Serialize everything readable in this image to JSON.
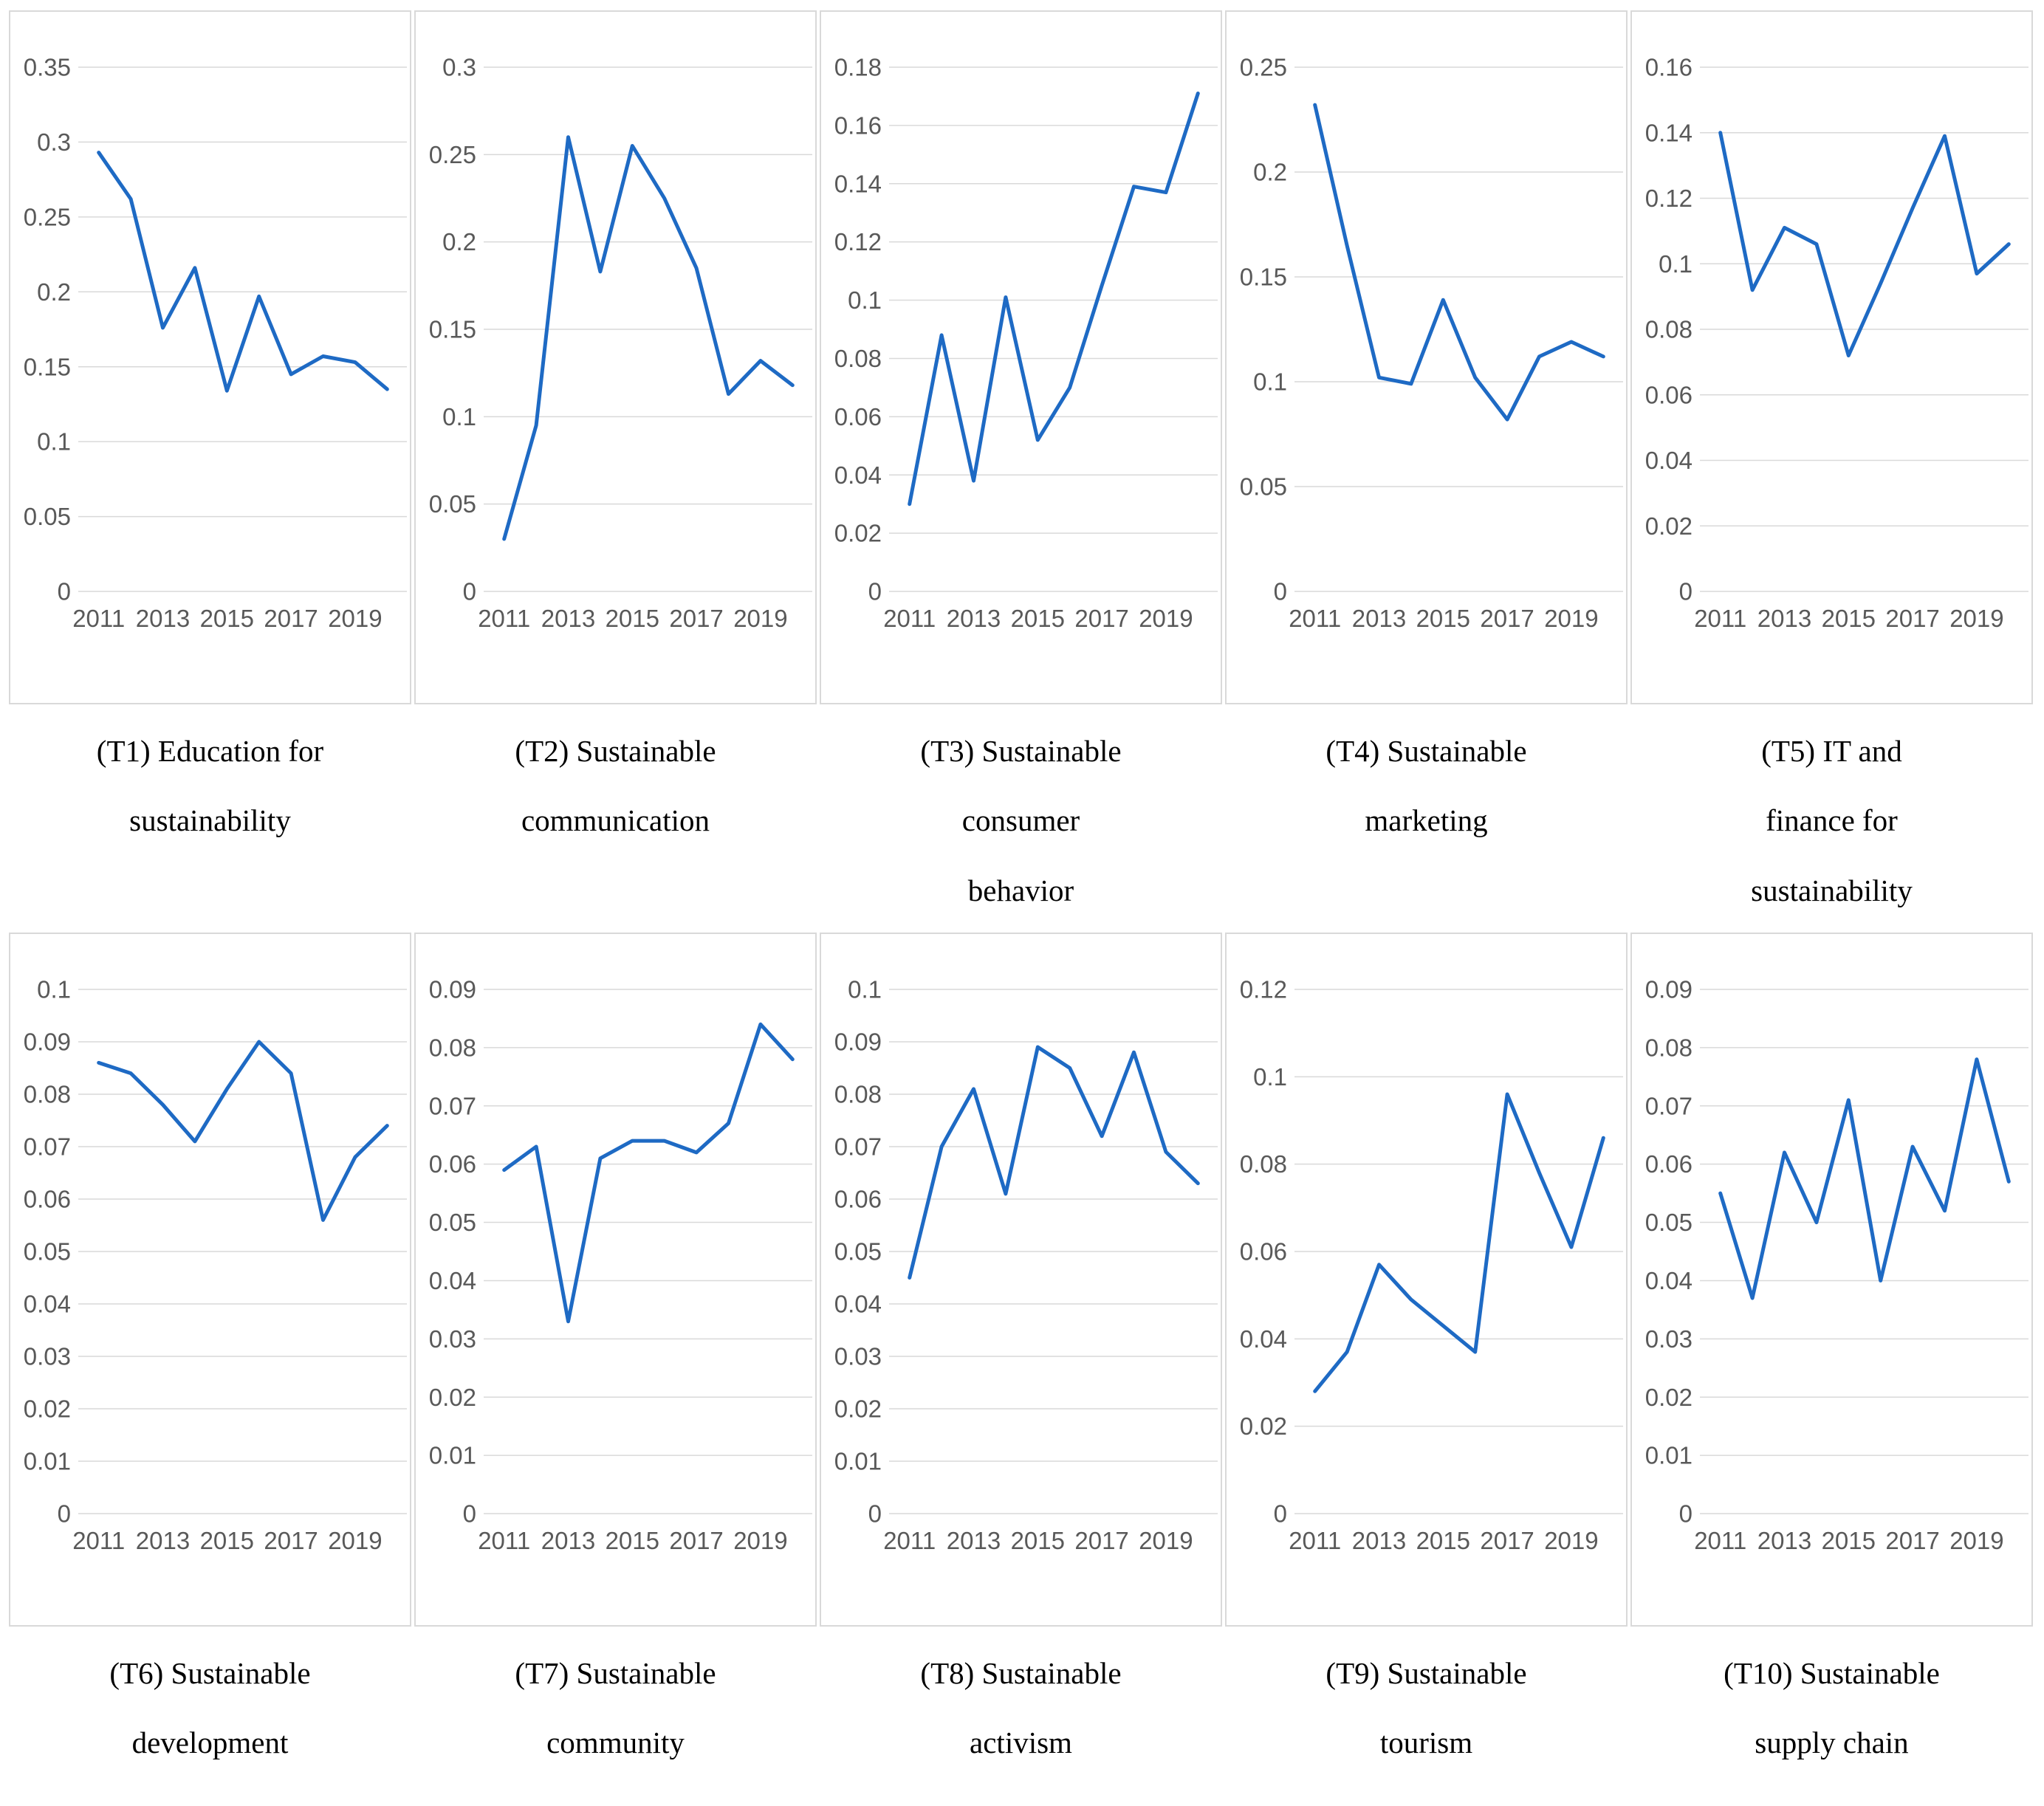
{
  "figure": {
    "description_colors": {
      "line_color": "#1E6AC4",
      "grid_color": "#D9D9D9",
      "tick_label_color": "#595959",
      "border_color": "#D9D9D9",
      "background": "#FFFFFF"
    }
  },
  "chart_data": [
    {
      "id": "T1",
      "type": "line",
      "title": "(T1) Education for sustainability",
      "caption_lines": [
        "(T1) Education for",
        "sustainability"
      ],
      "x": [
        2011,
        2012,
        2013,
        2014,
        2015,
        2016,
        2017,
        2018,
        2019,
        2020
      ],
      "x_tick_labels": [
        "2011",
        "2013",
        "2015",
        "2017",
        "2019"
      ],
      "values": [
        0.293,
        0.262,
        0.176,
        0.216,
        0.134,
        0.197,
        0.145,
        0.157,
        0.153,
        0.135
      ],
      "ylim": [
        0,
        0.35
      ],
      "y_ticks": [
        "0.35",
        "0.3",
        "0.25",
        "0.2",
        "0.15",
        "0.1",
        "0.05",
        "0"
      ],
      "grid": true,
      "legend": "none"
    },
    {
      "id": "T2",
      "type": "line",
      "title": "(T2) Sustainable communication",
      "caption_lines": [
        "(T2) Sustainable",
        "communication"
      ],
      "x": [
        2011,
        2012,
        2013,
        2014,
        2015,
        2016,
        2017,
        2018,
        2019,
        2020
      ],
      "x_tick_labels": [
        "2011",
        "2013",
        "2015",
        "2017",
        "2019"
      ],
      "values": [
        0.03,
        0.095,
        0.26,
        0.183,
        0.255,
        0.225,
        0.185,
        0.113,
        0.132,
        0.118
      ],
      "ylim": [
        0,
        0.3
      ],
      "y_ticks": [
        "0.3",
        "0.25",
        "0.2",
        "0.15",
        "0.1",
        "0.05",
        "0"
      ],
      "grid": true,
      "legend": "none"
    },
    {
      "id": "T3",
      "type": "line",
      "title": "(T3) Sustainable consumer behavior",
      "caption_lines": [
        "(T3) Sustainable",
        "consumer",
        "behavior"
      ],
      "x": [
        2011,
        2012,
        2013,
        2014,
        2015,
        2016,
        2017,
        2018,
        2019,
        2020
      ],
      "x_tick_labels": [
        "2011",
        "2013",
        "2015",
        "2017",
        "2019"
      ],
      "values": [
        0.03,
        0.088,
        0.038,
        0.101,
        0.052,
        0.07,
        0.105,
        0.139,
        0.137,
        0.171
      ],
      "ylim": [
        0,
        0.18
      ],
      "y_ticks": [
        "0.18",
        "0.16",
        "0.14",
        "0.12",
        "0.1",
        "0.08",
        "0.06",
        "0.04",
        "0.02",
        "0"
      ],
      "grid": true,
      "legend": "none"
    },
    {
      "id": "T4",
      "type": "line",
      "title": "(T4) Sustainable marketing",
      "caption_lines": [
        "(T4) Sustainable",
        "marketing"
      ],
      "x": [
        2011,
        2012,
        2013,
        2014,
        2015,
        2016,
        2017,
        2018,
        2019,
        2020
      ],
      "x_tick_labels": [
        "2011",
        "2013",
        "2015",
        "2017",
        "2019"
      ],
      "values": [
        0.232,
        0.165,
        0.102,
        0.099,
        0.139,
        0.102,
        0.082,
        0.112,
        0.119,
        0.112
      ],
      "ylim": [
        0,
        0.25
      ],
      "y_ticks": [
        "0.25",
        "0.2",
        "0.15",
        "0.1",
        "0.05",
        "0"
      ],
      "grid": true,
      "legend": "none"
    },
    {
      "id": "T5",
      "type": "line",
      "title": "(T5) IT and finance for sustainability",
      "caption_lines": [
        "(T5) IT and",
        "finance for",
        "sustainability"
      ],
      "x": [
        2011,
        2012,
        2013,
        2014,
        2015,
        2016,
        2017,
        2018,
        2019,
        2020
      ],
      "x_tick_labels": [
        "2011",
        "2013",
        "2015",
        "2017",
        "2019"
      ],
      "values": [
        0.14,
        0.092,
        0.111,
        0.106,
        0.072,
        0.094,
        0.117,
        0.139,
        0.097,
        0.106
      ],
      "ylim": [
        0,
        0.16
      ],
      "y_ticks": [
        "0.16",
        "0.14",
        "0.12",
        "0.1",
        "0.08",
        "0.06",
        "0.04",
        "0.02",
        "0"
      ],
      "grid": true,
      "legend": "none"
    },
    {
      "id": "T6",
      "type": "line",
      "title": "(T6) Sustainable development",
      "caption_lines": [
        "(T6) Sustainable",
        "development"
      ],
      "x": [
        2011,
        2012,
        2013,
        2014,
        2015,
        2016,
        2017,
        2018,
        2019,
        2020
      ],
      "x_tick_labels": [
        "2011",
        "2013",
        "2015",
        "2017",
        "2019"
      ],
      "values": [
        0.086,
        0.084,
        0.078,
        0.071,
        0.081,
        0.09,
        0.084,
        0.056,
        0.068,
        0.074
      ],
      "ylim": [
        0,
        0.1
      ],
      "y_ticks": [
        "0.1",
        "0.09",
        "0.08",
        "0.07",
        "0.06",
        "0.05",
        "0.04",
        "0.03",
        "0.02",
        "0.01",
        "0"
      ],
      "grid": true,
      "legend": "none"
    },
    {
      "id": "T7",
      "type": "line",
      "title": "(T7) Sustainable community",
      "caption_lines": [
        "(T7) Sustainable",
        "community"
      ],
      "x": [
        2011,
        2012,
        2013,
        2014,
        2015,
        2016,
        2017,
        2018,
        2019,
        2020
      ],
      "x_tick_labels": [
        "2011",
        "2013",
        "2015",
        "2017",
        "2019"
      ],
      "values": [
        0.059,
        0.063,
        0.033,
        0.061,
        0.064,
        0.064,
        0.062,
        0.067,
        0.084,
        0.078
      ],
      "ylim": [
        0,
        0.09
      ],
      "y_ticks": [
        "0.09",
        "0.08",
        "0.07",
        "0.06",
        "0.05",
        "0.04",
        "0.03",
        "0.02",
        "0.01",
        "0"
      ],
      "grid": true,
      "legend": "none"
    },
    {
      "id": "T8",
      "type": "line",
      "title": "(T8) Sustainable activism",
      "caption_lines": [
        "(T8) Sustainable",
        "activism"
      ],
      "x": [
        2011,
        2012,
        2013,
        2014,
        2015,
        2016,
        2017,
        2018,
        2019,
        2020
      ],
      "x_tick_labels": [
        "2011",
        "2013",
        "2015",
        "2017",
        "2019"
      ],
      "values": [
        0.045,
        0.07,
        0.081,
        0.061,
        0.089,
        0.085,
        0.072,
        0.088,
        0.069,
        0.063
      ],
      "ylim": [
        0,
        0.1
      ],
      "y_ticks": [
        "0.1",
        "0.09",
        "0.08",
        "0.07",
        "0.06",
        "0.05",
        "0.04",
        "0.03",
        "0.02",
        "0.01",
        "0"
      ],
      "grid": true,
      "legend": "none"
    },
    {
      "id": "T9",
      "type": "line",
      "title": "(T9) Sustainable tourism",
      "caption_lines": [
        "(T9) Sustainable",
        "tourism"
      ],
      "x": [
        2011,
        2012,
        2013,
        2014,
        2015,
        2016,
        2017,
        2018,
        2019,
        2020
      ],
      "x_tick_labels": [
        "2011",
        "2013",
        "2015",
        "2017",
        "2019"
      ],
      "values": [
        0.028,
        0.037,
        0.057,
        0.049,
        0.043,
        0.037,
        0.096,
        0.078,
        0.061,
        0.086
      ],
      "ylim": [
        0,
        0.12
      ],
      "y_ticks": [
        "0.12",
        "0.1",
        "0.08",
        "0.06",
        "0.04",
        "0.02",
        "0"
      ],
      "grid": true,
      "legend": "none"
    },
    {
      "id": "T10",
      "type": "line",
      "title": "(T10) Sustainable supply chain",
      "caption_lines": [
        "(T10) Sustainable",
        "supply chain"
      ],
      "x": [
        2011,
        2012,
        2013,
        2014,
        2015,
        2016,
        2017,
        2018,
        2019,
        2020
      ],
      "x_tick_labels": [
        "2011",
        "2013",
        "2015",
        "2017",
        "2019"
      ],
      "values": [
        0.055,
        0.037,
        0.062,
        0.05,
        0.071,
        0.04,
        0.063,
        0.052,
        0.078,
        0.057
      ],
      "ylim": [
        0,
        0.09
      ],
      "y_ticks": [
        "0.09",
        "0.08",
        "0.07",
        "0.06",
        "0.05",
        "0.04",
        "0.03",
        "0.02",
        "0.01",
        "0"
      ],
      "grid": true,
      "legend": "none"
    }
  ]
}
